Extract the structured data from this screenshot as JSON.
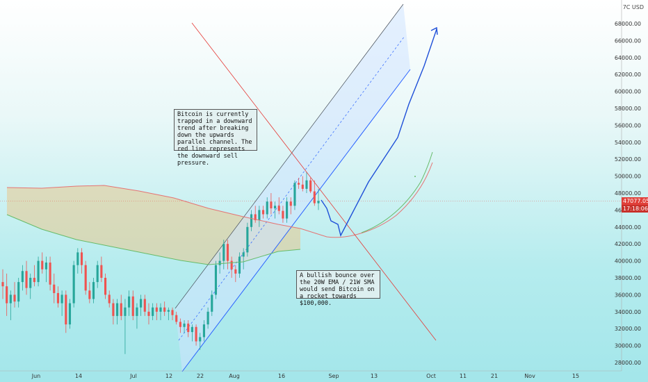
{
  "chart_data": {
    "type": "candlestick",
    "title": "",
    "currency_label": "7C USD",
    "y_ticks": [
      "28000.00",
      "30000.00",
      "32000.00",
      "34000.00",
      "36000.00",
      "38000.00",
      "40000.00",
      "42000.00",
      "44000.00",
      "46000.00",
      "48000.00",
      "50000.00",
      "52000.00",
      "54000.00",
      "56000.00",
      "58000.00",
      "60000.00",
      "62000.00",
      "64000.00",
      "66000.00",
      "68000.00"
    ],
    "x_ticks": [
      "Jun",
      "14",
      "Jul",
      "12",
      "22",
      "Aug",
      "16",
      "Sep",
      "13",
      "Oct",
      "11",
      "21",
      "Nov",
      "15"
    ],
    "ylim": [
      27000,
      70000
    ],
    "last_price": "47077.05",
    "countdown": "17:18:06",
    "colors": {
      "up": "#26a69a",
      "down": "#ef5350",
      "channel": "#2962ff",
      "resistance": "#e53935",
      "ema": "#e57373",
      "sma": "#66bb6a",
      "projection": "#1e4fd8",
      "cloud": "#e8c98e"
    },
    "annotations": [
      "Bitcoin is currently trapped in a downward trend after breaking down the upwards parallel channel.  The red line represents the downward sell pressure.",
      "A bullish bounce over the 20W EMA / 21W SMA would send Bitcoin on a rocket towards $100,000."
    ],
    "candles": [
      [
        37500,
        39000,
        35500,
        37000
      ],
      [
        37000,
        38500,
        33500,
        35000
      ],
      [
        35000,
        36500,
        33000,
        36000
      ],
      [
        36000,
        37500,
        34500,
        35200
      ],
      [
        35200,
        38000,
        34500,
        37500
      ],
      [
        37500,
        39500,
        36500,
        38800
      ],
      [
        38800,
        40000,
        36000,
        36800
      ],
      [
        36800,
        38500,
        35500,
        38000
      ],
      [
        38000,
        39500,
        37000,
        37500
      ],
      [
        37500,
        40500,
        37000,
        40000
      ],
      [
        40000,
        41000,
        38500,
        39000
      ],
      [
        39000,
        40500,
        37500,
        39800
      ],
      [
        39800,
        40500,
        36500,
        37200
      ],
      [
        37200,
        38500,
        35000,
        36200
      ],
      [
        36200,
        37000,
        34500,
        35000
      ],
      [
        35000,
        36500,
        33500,
        36000
      ],
      [
        36000,
        36500,
        31500,
        32500
      ],
      [
        32500,
        35500,
        32000,
        35000
      ],
      [
        35000,
        40000,
        34500,
        39500
      ],
      [
        39500,
        41500,
        38500,
        41000
      ],
      [
        41000,
        41500,
        38500,
        39500
      ],
      [
        39500,
        40000,
        36000,
        36500
      ],
      [
        36500,
        37500,
        35000,
        35500
      ],
      [
        35500,
        38000,
        35000,
        37500
      ],
      [
        37500,
        40000,
        36800,
        39500
      ],
      [
        39500,
        40500,
        37500,
        38000
      ],
      [
        38000,
        38500,
        35500,
        36000
      ],
      [
        36000,
        36500,
        34500,
        35000
      ],
      [
        35000,
        35500,
        32500,
        33500
      ],
      [
        33500,
        35500,
        32500,
        35000
      ],
      [
        35000,
        36000,
        33000,
        33500
      ],
      [
        33500,
        35500,
        29000,
        34500
      ],
      [
        34500,
        36500,
        33500,
        35800
      ],
      [
        35800,
        36500,
        33000,
        33500
      ],
      [
        33500,
        35000,
        32000,
        34500
      ],
      [
        34500,
        36000,
        33500,
        35500
      ],
      [
        35500,
        36000,
        33500,
        34000
      ],
      [
        34000,
        35000,
        32500,
        33500
      ],
      [
        33500,
        35000,
        33000,
        34500
      ],
      [
        34500,
        35000,
        33000,
        34000
      ],
      [
        34000,
        35000,
        33000,
        34500
      ],
      [
        34500,
        35200,
        33500,
        34000
      ],
      [
        34000,
        34500,
        33000,
        34200
      ],
      [
        34200,
        34500,
        33000,
        33600
      ],
      [
        33600,
        34000,
        32500,
        32800
      ],
      [
        32800,
        33200,
        31500,
        32200
      ],
      [
        32200,
        33000,
        31500,
        32600
      ],
      [
        32600,
        33000,
        31000,
        31600
      ],
      [
        31600,
        32500,
        30500,
        32200
      ],
      [
        32200,
        32500,
        30000,
        30500
      ],
      [
        30500,
        31500,
        29500,
        31000
      ],
      [
        31000,
        33000,
        30500,
        32500
      ],
      [
        32500,
        34500,
        32000,
        34000
      ],
      [
        34000,
        36500,
        33500,
        36000
      ],
      [
        36000,
        40000,
        35500,
        39500
      ],
      [
        39500,
        41000,
        38500,
        40000
      ],
      [
        40000,
        42500,
        39000,
        42000
      ],
      [
        42000,
        42500,
        39000,
        40000
      ],
      [
        40000,
        40500,
        38000,
        39000
      ],
      [
        39000,
        39500,
        37500,
        38500
      ],
      [
        38500,
        41000,
        38000,
        40500
      ],
      [
        40500,
        41500,
        39000,
        41000
      ],
      [
        41000,
        44500,
        40500,
        44000
      ],
      [
        44000,
        46000,
        43500,
        45500
      ],
      [
        45500,
        46500,
        44500,
        44800
      ],
      [
        44800,
        46500,
        44000,
        46000
      ],
      [
        46000,
        46500,
        45000,
        45500
      ],
      [
        45500,
        47500,
        45000,
        47000
      ],
      [
        47000,
        48000,
        45500,
        46200
      ],
      [
        46200,
        47000,
        45000,
        46500
      ],
      [
        46500,
        47500,
        45500,
        45900
      ],
      [
        45900,
        46500,
        44500,
        45000
      ],
      [
        45000,
        47500,
        44500,
        47000
      ],
      [
        47000,
        47500,
        45500,
        46500
      ],
      [
        46500,
        49500,
        46000,
        49200
      ],
      [
        49200,
        49800,
        48500,
        49000
      ],
      [
        49000,
        50000,
        48200,
        48500
      ],
      [
        48500,
        50500,
        48000,
        49500
      ],
      [
        49500,
        49800,
        48000,
        48200
      ],
      [
        48200,
        49500,
        46500,
        46800
      ],
      [
        46800,
        48500,
        46000,
        47077
      ]
    ]
  }
}
